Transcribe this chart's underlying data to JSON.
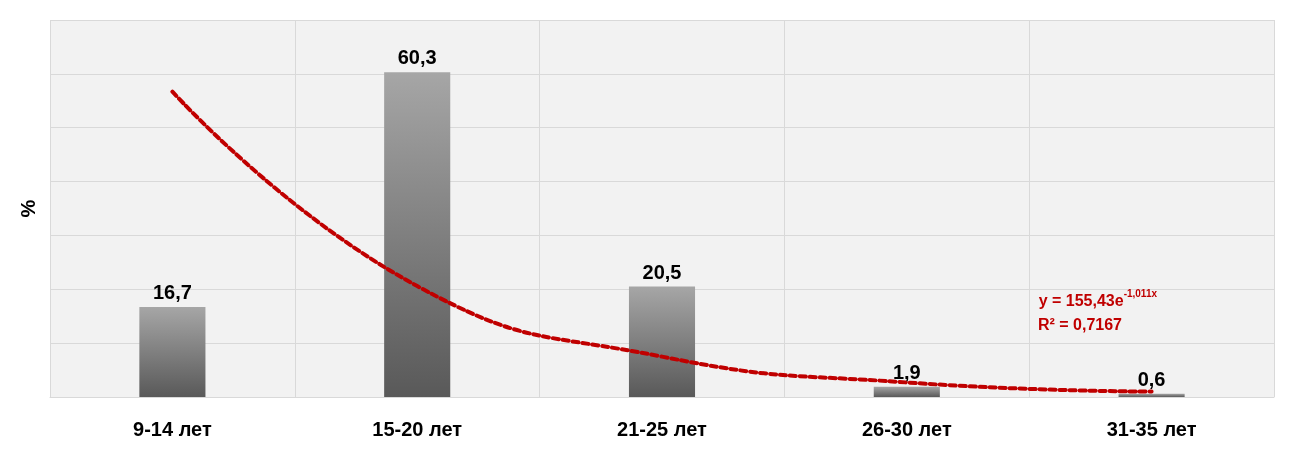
{
  "chart_data": {
    "type": "bar",
    "ylabel": "%",
    "categories": [
      "9-14 лет",
      "15-20 лет",
      "21-25 лет",
      "26-30 лет",
      "31-35 лет"
    ],
    "series": [
      {
        "color": "#a6a6a6",
        "values": [
          16.7,
          60.3,
          20.5,
          1.9,
          0.6
        ],
        "value_labels": [
          "16,7",
          "60,3",
          "20,5",
          "1,9",
          "0,6"
        ]
      },
      {
        "type": "line",
        "color": "#c00000",
        "line_style": "dashed",
        "marker": "none",
        "values": [
          56.7,
          20.6,
          7.5,
          2.7,
          1.0
        ]
      }
    ],
    "tick_labels": "x",
    "grid": true,
    "annotations": [
      "y = 155,43e$^{-1,011x}$",
      "R² = 0,7167"
    ]
  }
}
